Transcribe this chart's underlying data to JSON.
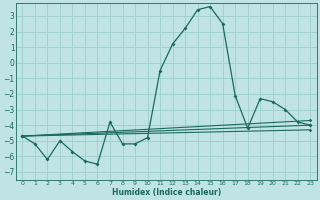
{
  "bg_color": "#c0e4e4",
  "grid_color": "#9ecece",
  "line_color": "#1a6b5a",
  "xlabel": "Humidex (Indice chaleur)",
  "xlim": [
    -0.5,
    23.5
  ],
  "ylim": [
    -7.5,
    3.8
  ],
  "yticks": [
    3,
    2,
    1,
    0,
    -1,
    -2,
    -3,
    -4,
    -5,
    -6,
    -7
  ],
  "xticks": [
    0,
    1,
    2,
    3,
    4,
    5,
    6,
    7,
    8,
    9,
    10,
    11,
    12,
    13,
    14,
    15,
    16,
    17,
    18,
    19,
    20,
    21,
    22,
    23
  ],
  "series": [
    {
      "x": [
        0,
        1,
        2,
        3,
        4,
        5,
        6,
        7,
        8,
        9,
        10,
        11,
        12,
        13,
        14,
        15,
        16,
        17,
        18,
        19,
        20,
        21,
        22,
        23
      ],
      "y": [
        -4.7,
        -5.2,
        -6.2,
        -5.0,
        -5.7,
        -6.3,
        -6.5,
        -3.8,
        -5.2,
        -5.2,
        -4.8,
        -0.5,
        1.2,
        2.2,
        3.4,
        3.6,
        2.5,
        -2.1,
        -4.2,
        -2.3,
        -2.5,
        -3.0,
        -3.8,
        -4.0
      ]
    },
    {
      "x": [
        0,
        23
      ],
      "y": [
        -4.7,
        -3.7
      ]
    },
    {
      "x": [
        0,
        23
      ],
      "y": [
        -4.7,
        -4.0
      ]
    },
    {
      "x": [
        0,
        23
      ],
      "y": [
        -4.7,
        -4.3
      ]
    }
  ]
}
